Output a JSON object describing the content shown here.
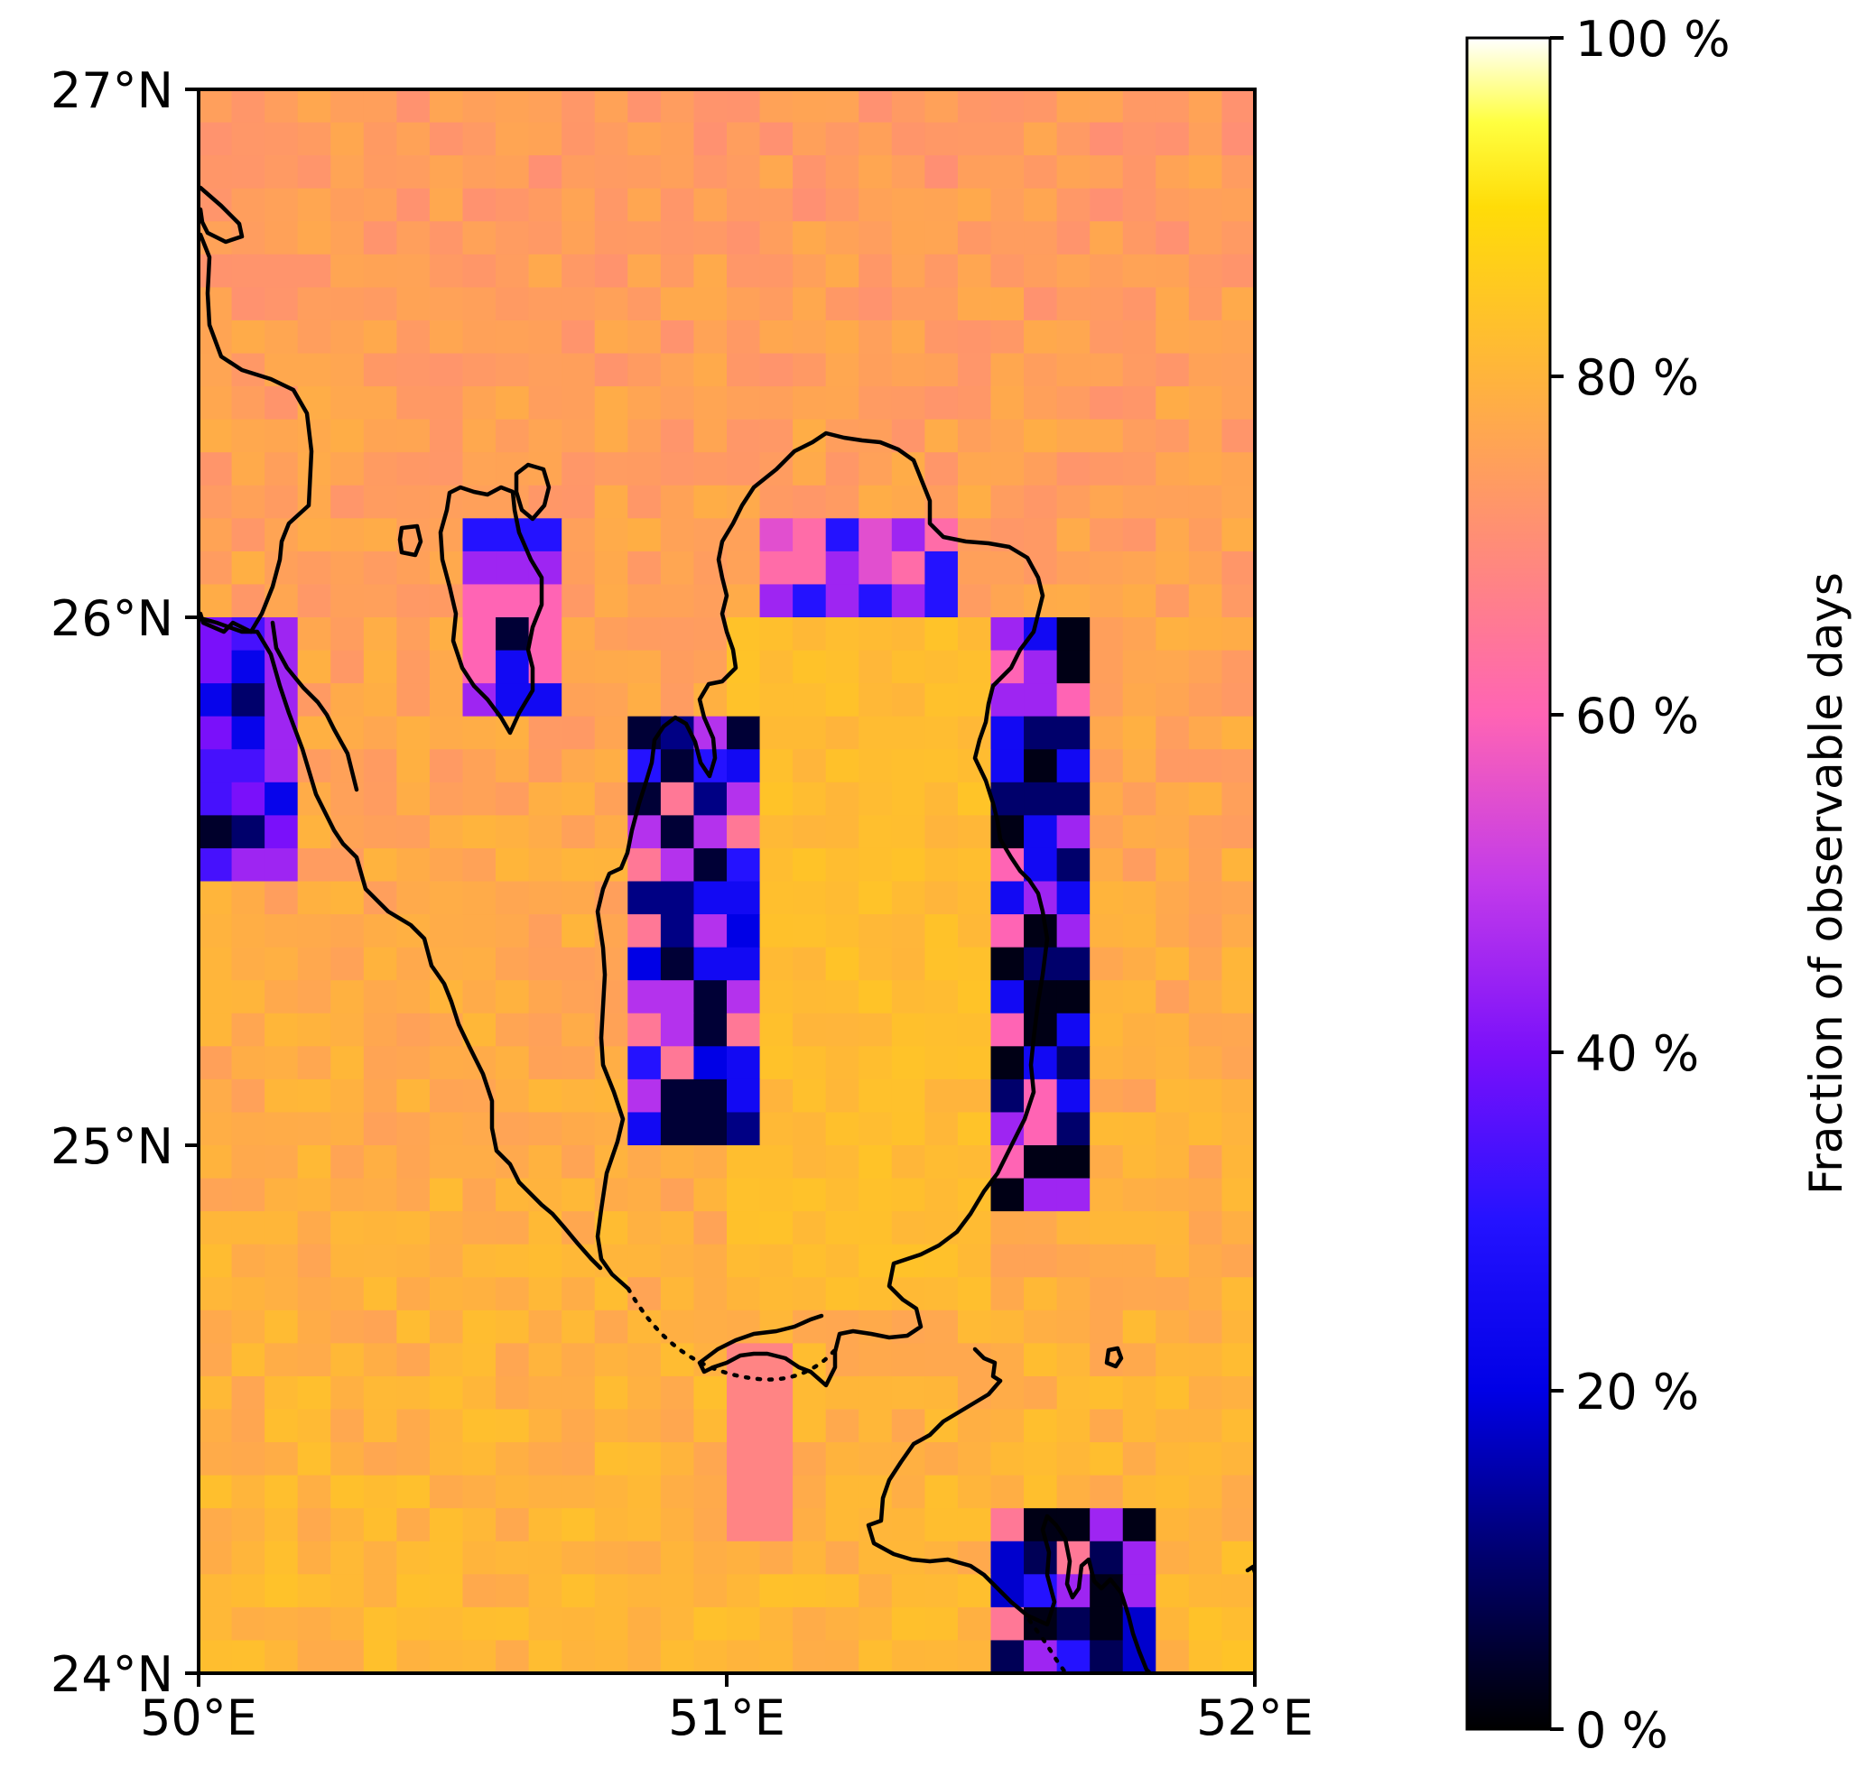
{
  "chart_data": {
    "type": "heatmap",
    "map_extent": {
      "lon": [
        50,
        52
      ],
      "lat": [
        24,
        27
      ]
    },
    "grid": {
      "columns": 32,
      "rows": 48,
      "cell_size_deg": 0.0625
    },
    "background_value_range": [
      68,
      84
    ],
    "x_ticks": [
      "50°E",
      "51°E",
      "52°E"
    ],
    "y_ticks": [
      "27°N",
      "26°N",
      "25°N",
      "24°N"
    ],
    "colorbar": {
      "label": "Fraction of observable days",
      "ticks": [
        "0 %",
        "20 %",
        "40 %",
        "60 %",
        "80 %",
        "100 %"
      ],
      "range": [
        0,
        100
      ],
      "colormap": "gnuplot2"
    },
    "low_value_regions": [
      {
        "lon": [
          50.0,
          50.125
        ],
        "lat": [
          25.5,
          25.9375
        ],
        "values": [
          4,
          10,
          22,
          34,
          40,
          45
        ]
      },
      {
        "lon": [
          50.5,
          50.625
        ],
        "lat": [
          25.8125,
          26.125
        ],
        "values": [
          5,
          25,
          30,
          45,
          60
        ]
      },
      {
        "lon": [
          50.8125,
          51.0
        ],
        "lat": [
          25.0,
          25.75
        ],
        "values": [
          5,
          12,
          20,
          25,
          30,
          48,
          65
        ]
      },
      {
        "lon": [
          51.0625,
          51.375
        ],
        "lat": [
          26.0,
          26.125
        ],
        "values": [
          30,
          45,
          55,
          62
        ]
      },
      {
        "lon": [
          51.5,
          51.625
        ],
        "lat": [
          24.875,
          25.9375
        ],
        "values": [
          2,
          10,
          25,
          45,
          60
        ]
      },
      {
        "lon": [
          51.5,
          51.75
        ],
        "lat": [
          24.0,
          24.25
        ],
        "values": [
          2,
          8,
          18,
          30,
          45,
          65
        ]
      },
      {
        "lon": [
          51.0,
          51.0625
        ],
        "lat": [
          24.25,
          24.5625
        ],
        "values": [
          68
        ]
      }
    ],
    "coastline_features": [
      "Qatar peninsula",
      "Bahrain",
      "Saudi Arabia coast",
      "UAE coast",
      "small island near 51.8°E 24.6°N"
    ],
    "border_style": "dotted"
  }
}
